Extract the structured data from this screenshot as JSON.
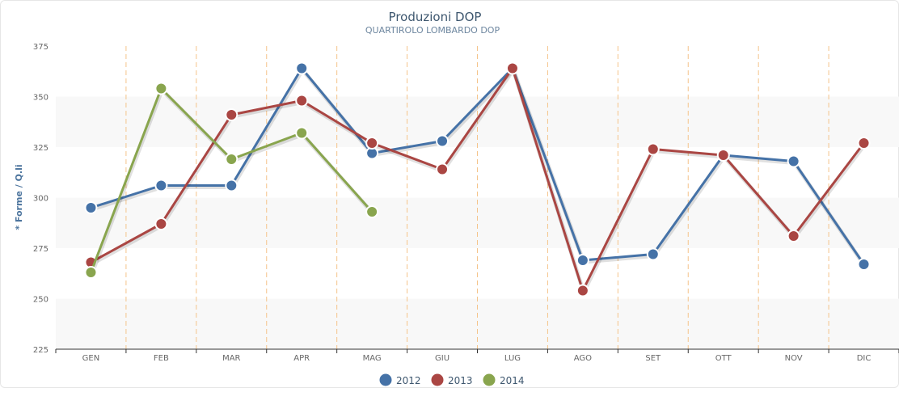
{
  "chart_data": {
    "type": "line",
    "title": "Produzioni DOP",
    "subtitle": "QUARTIROLO LOMBARDO DOP",
    "ylabel": "* Forme / Q.li",
    "xlabel": "",
    "ylim": [
      225,
      375
    ],
    "yticks": [
      225,
      250,
      275,
      300,
      325,
      350,
      375
    ],
    "categories": [
      "GEN",
      "FEB",
      "MAR",
      "APR",
      "MAG",
      "GIU",
      "LUG",
      "AGO",
      "SET",
      "OTT",
      "NOV",
      "DIC"
    ],
    "grid": "alternating horizontal bands, dashed vertical lines",
    "legend_position": "bottom-center",
    "series": [
      {
        "name": "2012",
        "color": "#4572a7",
        "values": [
          295,
          306,
          306,
          364,
          322,
          328,
          364,
          269,
          272,
          321,
          318,
          267
        ]
      },
      {
        "name": "2013",
        "color": "#aa4643",
        "values": [
          268,
          287,
          341,
          348,
          327,
          314,
          364,
          254,
          324,
          321,
          281,
          327
        ]
      },
      {
        "name": "2014",
        "color": "#89a54e",
        "values": [
          263,
          354,
          319,
          332,
          293,
          null,
          null,
          null,
          null,
          null,
          null,
          null
        ]
      }
    ]
  }
}
